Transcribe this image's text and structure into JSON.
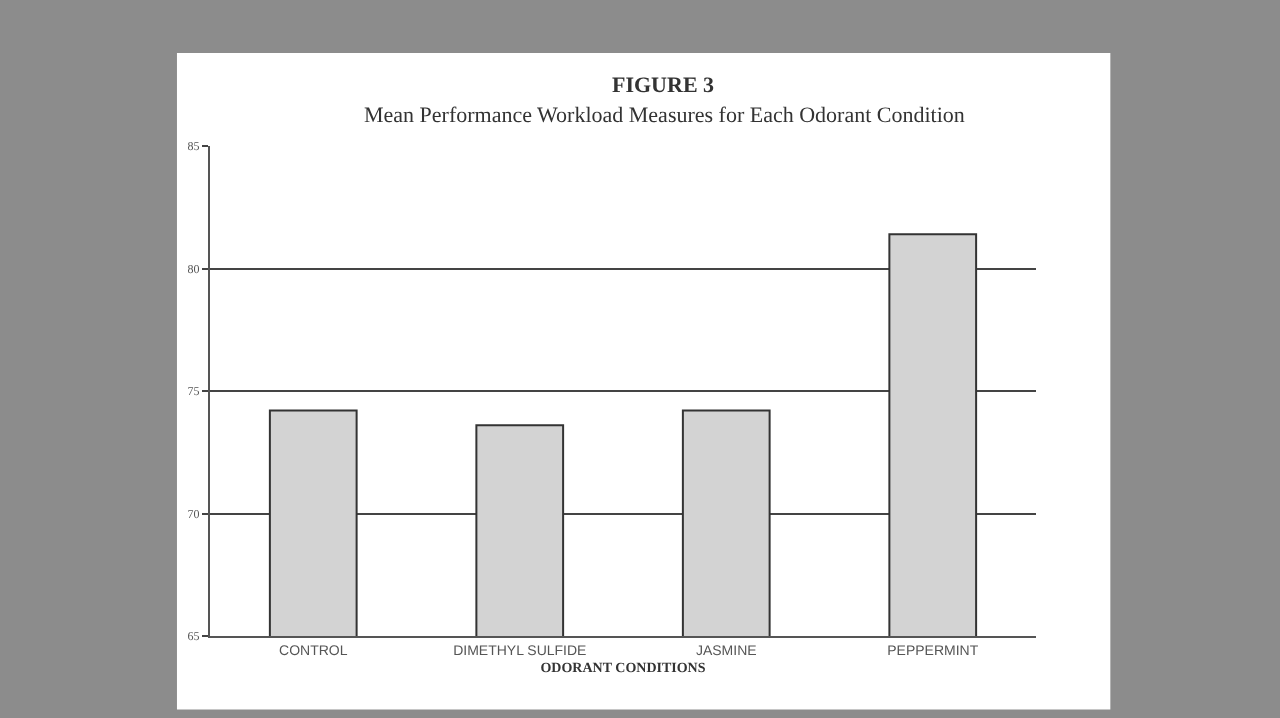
{
  "chart_data": {
    "type": "bar",
    "title": "FIGURE 3",
    "subtitle": "Mean Performance Workload Measures for Each Odorant Condition",
    "xlabel": "ODORANT CONDITIONS",
    "categories": [
      "CONTROL",
      "DIMETHYL SULFIDE",
      "JASMINE",
      "PEPPERMINT"
    ],
    "values": [
      74.2,
      73.6,
      74.2,
      81.4
    ],
    "color": "#d3d3d3",
    "ylim": [
      65,
      85
    ],
    "yticks": [
      65,
      70,
      75,
      80,
      85
    ],
    "grid": "y"
  }
}
